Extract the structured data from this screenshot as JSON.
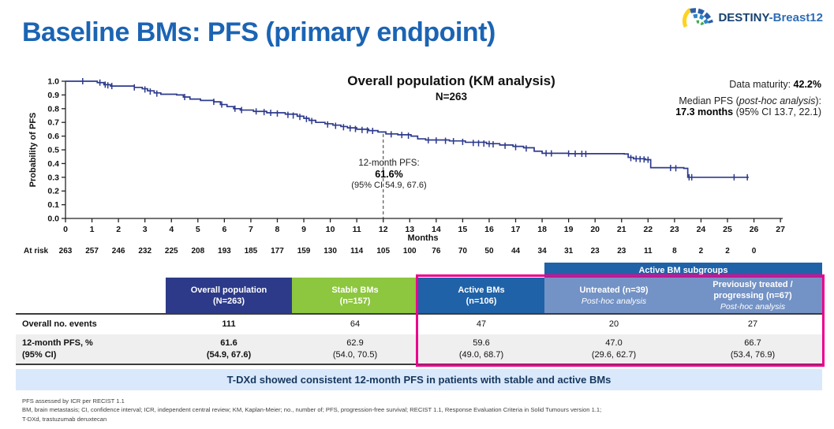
{
  "colors": {
    "accent_blue": "#1b64b4",
    "navy_header": "#2d3a8a",
    "green_header": "#8dc63f",
    "mid_blue": "#1f62a8",
    "light_blue": "#7392c5",
    "pink": "#ec008c",
    "banner_bg": "#d9e9fb",
    "curve": "#2d3a8c",
    "row_alt": "#efefef"
  },
  "header": {
    "title": "Baseline BMs: PFS (primary endpoint)",
    "logo_bold": "DESTINY",
    "logo_rest": "-Breast12"
  },
  "chart": {
    "title": "Overall population (KM analysis)",
    "n": "N=263",
    "data_maturity_prefix": "Data maturity: ",
    "data_maturity_value": "42.2%",
    "median_pre": "Median PFS (",
    "median_italic": "post-hoc analysis",
    "median_post": "):",
    "median_bold": "17.3 months",
    "median_rest": " (95% CI 13.7, 22.1)",
    "annotation_line1": "12-month PFS:",
    "annotation_value": "61.6%",
    "annotation_ci": "(95% CI 54.9, 67.6)"
  },
  "chart_data": {
    "type": "line",
    "subtype": "kaplan-meier-step",
    "title": "Overall population (KM analysis)",
    "n": 263,
    "xlabel": "Months",
    "ylabel": "Probability of PFS",
    "xlim": [
      0,
      27
    ],
    "ylim": [
      0.0,
      1.0
    ],
    "xticks": [
      0,
      1,
      2,
      3,
      4,
      5,
      6,
      7,
      8,
      9,
      10,
      11,
      12,
      13,
      14,
      15,
      16,
      17,
      18,
      19,
      20,
      21,
      22,
      23,
      24,
      25,
      26,
      27
    ],
    "yticks": [
      0.0,
      0.1,
      0.2,
      0.3,
      0.4,
      0.5,
      0.6,
      0.7,
      0.8,
      0.9,
      1.0
    ],
    "grid": false,
    "annotation_month": 12,
    "annotation_prob": 0.616,
    "km_steps": [
      [
        0,
        1.0
      ],
      [
        1.2,
        0.99
      ],
      [
        1.45,
        0.975
      ],
      [
        1.7,
        0.965
      ],
      [
        2.6,
        0.955
      ],
      [
        2.9,
        0.945
      ],
      [
        3.1,
        0.93
      ],
      [
        3.35,
        0.915
      ],
      [
        3.6,
        0.905
      ],
      [
        4.2,
        0.9
      ],
      [
        4.45,
        0.885
      ],
      [
        4.7,
        0.87
      ],
      [
        5.1,
        0.86
      ],
      [
        5.6,
        0.85
      ],
      [
        5.85,
        0.83
      ],
      [
        6.1,
        0.815
      ],
      [
        6.35,
        0.8
      ],
      [
        6.6,
        0.79
      ],
      [
        7.1,
        0.78
      ],
      [
        7.6,
        0.77
      ],
      [
        8.3,
        0.76
      ],
      [
        8.75,
        0.745
      ],
      [
        9.0,
        0.73
      ],
      [
        9.2,
        0.715
      ],
      [
        9.45,
        0.7
      ],
      [
        9.8,
        0.69
      ],
      [
        10.1,
        0.68
      ],
      [
        10.4,
        0.67
      ],
      [
        10.65,
        0.66
      ],
      [
        11.0,
        0.65
      ],
      [
        11.45,
        0.64
      ],
      [
        11.8,
        0.63
      ],
      [
        12.1,
        0.616
      ],
      [
        12.55,
        0.61
      ],
      [
        13.05,
        0.6
      ],
      [
        13.3,
        0.58
      ],
      [
        13.6,
        0.572
      ],
      [
        14.5,
        0.565
      ],
      [
        15.1,
        0.555
      ],
      [
        15.9,
        0.545
      ],
      [
        16.4,
        0.535
      ],
      [
        16.9,
        0.525
      ],
      [
        17.3,
        0.515
      ],
      [
        17.7,
        0.49
      ],
      [
        18.0,
        0.475
      ],
      [
        19.0,
        0.472
      ],
      [
        21.1,
        0.47
      ],
      [
        21.25,
        0.445
      ],
      [
        21.45,
        0.435
      ],
      [
        21.9,
        0.428
      ],
      [
        22.1,
        0.37
      ],
      [
        23.35,
        0.365
      ],
      [
        23.5,
        0.3
      ],
      [
        25.8,
        0.3
      ]
    ],
    "censor_marks": [
      [
        0.65,
        1.0
      ],
      [
        1.3,
        0.99
      ],
      [
        1.5,
        0.975
      ],
      [
        1.6,
        0.97
      ],
      [
        1.75,
        0.965
      ],
      [
        2.6,
        0.955
      ],
      [
        3.0,
        0.94
      ],
      [
        3.2,
        0.925
      ],
      [
        3.45,
        0.91
      ],
      [
        4.5,
        0.885
      ],
      [
        5.6,
        0.85
      ],
      [
        5.9,
        0.83
      ],
      [
        6.4,
        0.8
      ],
      [
        6.65,
        0.79
      ],
      [
        7.2,
        0.78
      ],
      [
        7.5,
        0.775
      ],
      [
        7.75,
        0.77
      ],
      [
        8.0,
        0.765
      ],
      [
        8.4,
        0.755
      ],
      [
        8.6,
        0.75
      ],
      [
        8.85,
        0.74
      ],
      [
        9.1,
        0.725
      ],
      [
        9.3,
        0.71
      ],
      [
        9.9,
        0.685
      ],
      [
        10.2,
        0.675
      ],
      [
        10.5,
        0.665
      ],
      [
        10.75,
        0.657
      ],
      [
        10.95,
        0.652
      ],
      [
        11.2,
        0.645
      ],
      [
        11.4,
        0.642
      ],
      [
        11.6,
        0.638
      ],
      [
        12.3,
        0.613
      ],
      [
        12.7,
        0.608
      ],
      [
        12.95,
        0.603
      ],
      [
        13.7,
        0.57
      ],
      [
        14.0,
        0.568
      ],
      [
        14.35,
        0.566
      ],
      [
        14.65,
        0.563
      ],
      [
        15.0,
        0.558
      ],
      [
        15.4,
        0.55
      ],
      [
        15.6,
        0.548
      ],
      [
        15.8,
        0.546
      ],
      [
        16.0,
        0.543
      ],
      [
        16.15,
        0.54
      ],
      [
        16.6,
        0.53
      ],
      [
        17.0,
        0.52
      ],
      [
        17.4,
        0.51
      ],
      [
        18.15,
        0.475
      ],
      [
        18.35,
        0.474
      ],
      [
        19.0,
        0.473
      ],
      [
        19.25,
        0.472
      ],
      [
        19.5,
        0.471
      ],
      [
        19.65,
        0.47
      ],
      [
        21.35,
        0.44
      ],
      [
        21.55,
        0.435
      ],
      [
        21.7,
        0.432
      ],
      [
        21.85,
        0.43
      ],
      [
        22.0,
        0.428
      ],
      [
        22.85,
        0.368
      ],
      [
        23.05,
        0.366
      ],
      [
        23.55,
        0.3
      ],
      [
        23.65,
        0.3
      ],
      [
        25.25,
        0.3
      ],
      [
        25.75,
        0.3
      ]
    ],
    "at_risk": {
      "label": "At risk",
      "months": [
        0,
        1,
        2,
        3,
        4,
        5,
        6,
        7,
        8,
        9,
        10,
        11,
        12,
        13,
        14,
        15,
        16,
        17,
        18,
        19,
        20,
        21,
        22,
        23,
        24,
        25,
        26
      ],
      "values": [
        263,
        257,
        246,
        232,
        225,
        208,
        193,
        185,
        177,
        159,
        130,
        114,
        105,
        100,
        76,
        70,
        50,
        44,
        34,
        31,
        23,
        23,
        11,
        8,
        2,
        2,
        0
      ]
    }
  },
  "table": {
    "subgroup_banner": "Active BM subgroups",
    "columns": [
      {
        "title": "Overall population",
        "subtitle": "(N=263)"
      },
      {
        "title": "Stable BMs",
        "subtitle": "(n=157)"
      },
      {
        "title": "Active BMs",
        "subtitle": "(n=106)"
      },
      {
        "title": "Untreated (n=39)",
        "note": "Post-hoc analysis"
      },
      {
        "title": "Previously treated / progressing (n=67)",
        "note": "Post-hoc analysis"
      }
    ],
    "rows": [
      {
        "label": "Overall no. events",
        "values": [
          "111",
          "64",
          "47",
          "20",
          "27"
        ]
      },
      {
        "label_line1": "12-month PFS, %",
        "label_line2": "(95% CI)",
        "values": [
          "61.6",
          "62.9",
          "59.6",
          "47.0",
          "66.7"
        ],
        "ci": [
          "(54.9, 67.6)",
          "(54.0, 70.5)",
          "(49.0, 68.7)",
          "(29.6, 62.7)",
          "(53.4, 76.9)"
        ]
      }
    ]
  },
  "banner": {
    "text": "T-DXd showed consistent 12-month PFS in patients with stable and active BMs"
  },
  "footnotes": [
    "PFS assessed by ICR per RECIST 1.1",
    "BM, brain metastasis; CI, confidence interval; ICR, independent central review; KM, Kaplan-Meier; no., number of; PFS, progression-free survival; RECIST 1.1, Response Evaluation Criteria in Solid Tumours version 1.1;",
    "T-DXd, trastuzumab deruxtecan"
  ]
}
